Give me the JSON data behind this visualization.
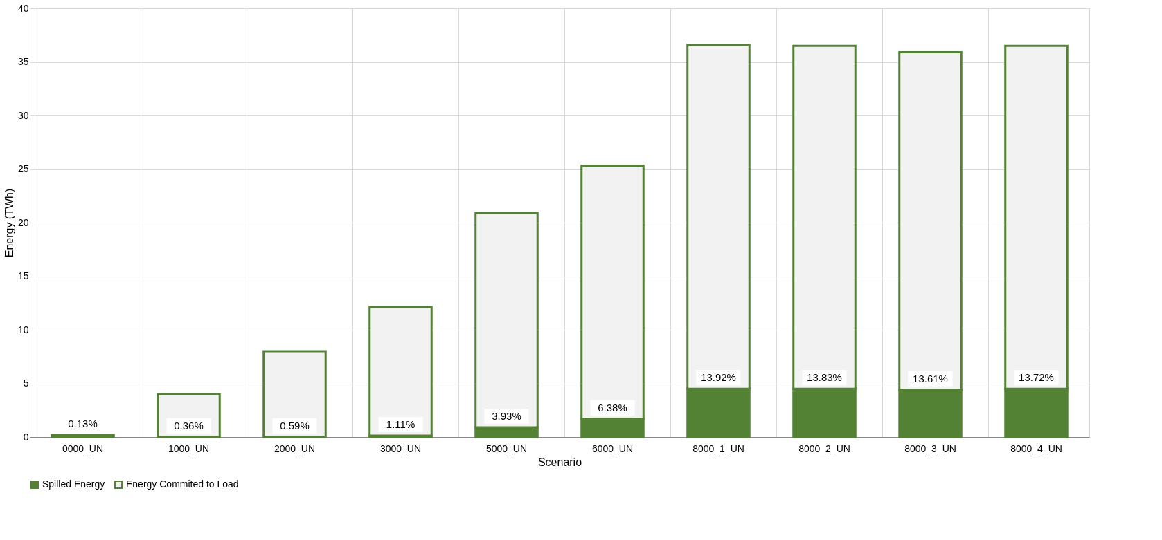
{
  "chart_data": {
    "type": "bar",
    "stacked": true,
    "xlabel": "Scenario",
    "ylabel": "Energy (TWh)",
    "categories": [
      "0000_UN",
      "1000_UN",
      "2000_UN",
      "3000_UN",
      "5000_UN",
      "6000_UN",
      "8000_1_UN",
      "8000_2_UN",
      "8000_3_UN",
      "8000_4_UN"
    ],
    "series": [
      {
        "name": "Spilled Energy",
        "color": "#548235",
        "values": [
          0.0,
          null,
          null,
          0.13,
          0.9,
          1.7,
          4.5,
          4.5,
          4.4,
          4.5
        ]
      },
      {
        "name": "Energy Commited to Load",
        "color": "#f2f2f2",
        "values": [
          0.2,
          4.0,
          8.0,
          12.0,
          20.0,
          23.6,
          32.1,
          32.0,
          31.5,
          32.0
        ]
      }
    ],
    "annotations": [
      {
        "text": "0.13%",
        "x": "0000_UN",
        "y": 0.2
      },
      {
        "text": "0.36%",
        "x": "1000_UN",
        "y": 0
      },
      {
        "text": "0.59%",
        "x": "2000_UN",
        "y": 0
      },
      {
        "text": "1.11%",
        "x": "3000_UN",
        "y": 0.13
      },
      {
        "text": "3.93%",
        "x": "5000_UN",
        "y": 0.9
      },
      {
        "text": "6.38%",
        "x": "6000_UN",
        "y": 1.7
      },
      {
        "text": "13.92%",
        "x": "8000_1_UN",
        "y": 4.5
      },
      {
        "text": "13.83%",
        "x": "8000_2_UN",
        "y": 4.5
      },
      {
        "text": "13.61%",
        "x": "8000_3_UN",
        "y": 4.4
      },
      {
        "text": "13.72%",
        "x": "8000_4_UN",
        "y": 4.5
      }
    ],
    "ylim": [
      0,
      40
    ],
    "yticks": [
      0,
      5,
      10,
      15,
      20,
      25,
      30,
      35,
      40
    ],
    "grid": true,
    "legend": "bottom"
  }
}
